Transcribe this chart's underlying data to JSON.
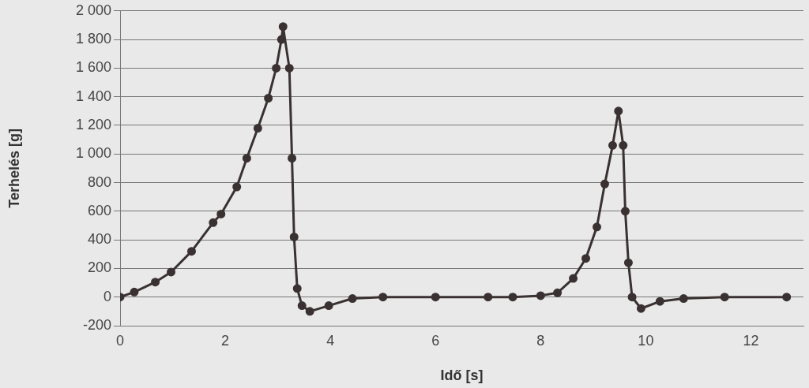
{
  "chart_data": {
    "type": "line",
    "xlabel": "Idő [s]",
    "ylabel": "Terhelés [g]",
    "xlim": [
      0,
      13
    ],
    "xticks": [
      0,
      2,
      4,
      6,
      8,
      10,
      12
    ],
    "ylim": [
      -200,
      2000
    ],
    "yticks": [
      -200,
      0,
      200,
      400,
      600,
      800,
      {
        "value": 1000,
        "label": "1 000"
      },
      {
        "value": 1200,
        "label": "1 200"
      },
      {
        "value": 1400,
        "label": "1 400"
      },
      {
        "value": 1600,
        "label": "1 600"
      },
      {
        "value": 1800,
        "label": "1 800"
      },
      {
        "value": 2000,
        "label": "2 000"
      }
    ],
    "grid": "y",
    "marker": "circle",
    "line_style": "solid",
    "series": [
      {
        "color": "#3a3232",
        "x": [
          0,
          0.27,
          0.67,
          0.97,
          1.36,
          1.77,
          1.92,
          2.22,
          2.41,
          2.62,
          2.82,
          2.97,
          3.07,
          3.1,
          3.22,
          3.27,
          3.31,
          3.37,
          3.46,
          3.61,
          3.97,
          4.42,
          5,
          6,
          7,
          7.47,
          8,
          8.32,
          8.62,
          8.86,
          9.07,
          9.22,
          9.37,
          9.48,
          9.57,
          9.61,
          9.67,
          9.74,
          9.91,
          10.27,
          10.72,
          11.5,
          12.68
        ],
        "values": [
          0,
          35,
          105,
          175,
          320,
          520,
          580,
          770,
          970,
          1180,
          1390,
          1600,
          1800,
          1890,
          1600,
          970,
          420,
          60,
          -60,
          -100,
          -60,
          -10,
          0,
          0,
          0,
          0,
          10,
          30,
          130,
          270,
          490,
          790,
          1060,
          1300,
          1060,
          600,
          240,
          0,
          -80,
          -30,
          -10,
          0,
          0
        ]
      }
    ]
  }
}
